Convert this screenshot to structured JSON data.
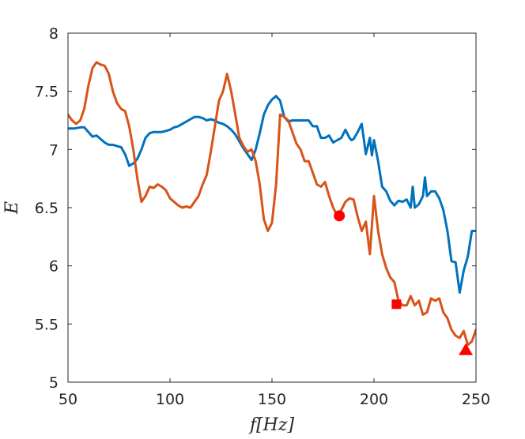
{
  "chart_data": {
    "type": "line",
    "xlabel": "f[Hz]",
    "ylabel": "E",
    "xlim": [
      50,
      250
    ],
    "ylim": [
      5,
      8
    ],
    "xticks": [
      50,
      100,
      150,
      200,
      250
    ],
    "yticks": [
      5,
      5.5,
      6,
      6.5,
      7,
      7.5,
      8
    ],
    "grid": false,
    "series": [
      {
        "color": "#0072BD",
        "x": [
          50,
          53,
          56,
          58,
          60,
          62,
          64,
          66,
          68,
          70,
          72,
          74,
          76,
          78,
          80,
          82,
          84,
          86,
          88,
          90,
          92,
          94,
          96,
          98,
          100,
          102,
          104,
          106,
          108,
          110,
          112,
          114,
          116,
          118,
          120,
          122,
          124,
          126,
          128,
          130,
          132,
          134,
          136,
          138,
          140,
          142,
          144,
          146,
          148,
          150,
          152,
          154,
          156,
          158,
          160,
          162,
          164,
          166,
          168,
          170,
          172,
          174,
          176,
          178,
          180,
          182,
          184,
          186,
          188,
          189,
          190,
          192,
          194,
          196,
          198,
          199,
          200,
          202,
          204,
          206,
          208,
          210,
          212,
          214,
          216,
          218,
          219,
          220,
          222,
          224,
          225,
          226,
          228,
          230,
          232,
          234,
          236,
          238,
          240,
          242,
          244,
          246,
          248,
          250
        ],
        "values": [
          7.18,
          7.18,
          7.19,
          7.19,
          7.15,
          7.11,
          7.12,
          7.09,
          7.06,
          7.04,
          7.04,
          7.03,
          7.02,
          6.96,
          6.86,
          6.88,
          6.92,
          7.0,
          7.1,
          7.14,
          7.15,
          7.15,
          7.15,
          7.16,
          7.17,
          7.19,
          7.2,
          7.22,
          7.24,
          7.26,
          7.28,
          7.28,
          7.27,
          7.25,
          7.26,
          7.25,
          7.23,
          7.22,
          7.2,
          7.17,
          7.13,
          7.07,
          7.01,
          6.96,
          6.91,
          7.0,
          7.14,
          7.3,
          7.38,
          7.43,
          7.46,
          7.42,
          7.28,
          7.24,
          7.25,
          7.25,
          7.25,
          7.25,
          7.25,
          7.2,
          7.2,
          7.1,
          7.1,
          7.12,
          7.06,
          7.08,
          7.1,
          7.17,
          7.1,
          7.08,
          7.09,
          7.15,
          7.22,
          6.96,
          7.1,
          6.95,
          7.08,
          6.9,
          6.68,
          6.64,
          6.56,
          6.52,
          6.56,
          6.55,
          6.57,
          6.5,
          6.68,
          6.5,
          6.53,
          6.6,
          6.76,
          6.6,
          6.64,
          6.64,
          6.58,
          6.48,
          6.3,
          6.04,
          6.03,
          5.77,
          5.96,
          6.08,
          6.3,
          6.3
        ],
        "line_points_unused": null
      },
      {
        "color": "#D95319",
        "x": [
          50,
          52,
          54,
          56,
          58,
          60,
          62,
          64,
          66,
          68,
          70,
          72,
          74,
          76,
          78,
          80,
          82,
          84,
          86,
          88,
          90,
          92,
          94,
          96,
          98,
          100,
          102,
          104,
          106,
          108,
          110,
          112,
          114,
          116,
          118,
          120,
          122,
          124,
          126,
          128,
          130,
          132,
          134,
          136,
          138,
          140,
          142,
          144,
          146,
          148,
          150,
          152,
          154,
          156,
          158,
          160,
          162,
          164,
          166,
          168,
          170,
          172,
          174,
          176,
          178,
          180,
          182,
          184,
          186,
          188,
          190,
          192,
          194,
          196,
          198,
          200,
          202,
          204,
          206,
          208,
          210,
          212,
          214,
          216,
          218,
          220,
          222,
          224,
          226,
          228,
          230,
          232,
          234,
          236,
          238,
          240,
          242,
          244,
          246,
          248,
          250
        ],
        "values": [
          7.3,
          7.25,
          7.22,
          7.25,
          7.35,
          7.55,
          7.7,
          7.75,
          7.73,
          7.72,
          7.65,
          7.5,
          7.4,
          7.35,
          7.33,
          7.2,
          7.0,
          6.75,
          6.55,
          6.6,
          6.68,
          6.67,
          6.7,
          6.68,
          6.65,
          6.58,
          6.55,
          6.52,
          6.5,
          6.51,
          6.5,
          6.55,
          6.6,
          6.7,
          6.78,
          6.98,
          7.2,
          7.42,
          7.5,
          7.65,
          7.5,
          7.3,
          7.1,
          7.03,
          6.98,
          7.0,
          6.9,
          6.7,
          6.4,
          6.3,
          6.37,
          6.7,
          7.3,
          7.28,
          7.25,
          7.15,
          7.05,
          7.0,
          6.9,
          6.9,
          6.8,
          6.7,
          6.68,
          6.72,
          6.6,
          6.5,
          6.43,
          6.48,
          6.55,
          6.58,
          6.57,
          6.42,
          6.3,
          6.38,
          6.1,
          6.6,
          6.3,
          6.1,
          5.98,
          5.9,
          5.86,
          5.7,
          5.66,
          5.66,
          5.74,
          5.66,
          5.7,
          5.58,
          5.6,
          5.72,
          5.7,
          5.72,
          5.6,
          5.55,
          5.45,
          5.4,
          5.38,
          5.44,
          5.32,
          5.35,
          5.45
        ],
        "line_points_unused": null
      }
    ],
    "markers": [
      {
        "shape": "circle",
        "x": 183,
        "y": 6.43,
        "color": "#FF0000"
      },
      {
        "shape": "square",
        "x": 211,
        "y": 5.67,
        "color": "#FF0000"
      },
      {
        "shape": "triangle",
        "x": 245,
        "y": 5.28,
        "color": "#FF0000"
      }
    ]
  }
}
